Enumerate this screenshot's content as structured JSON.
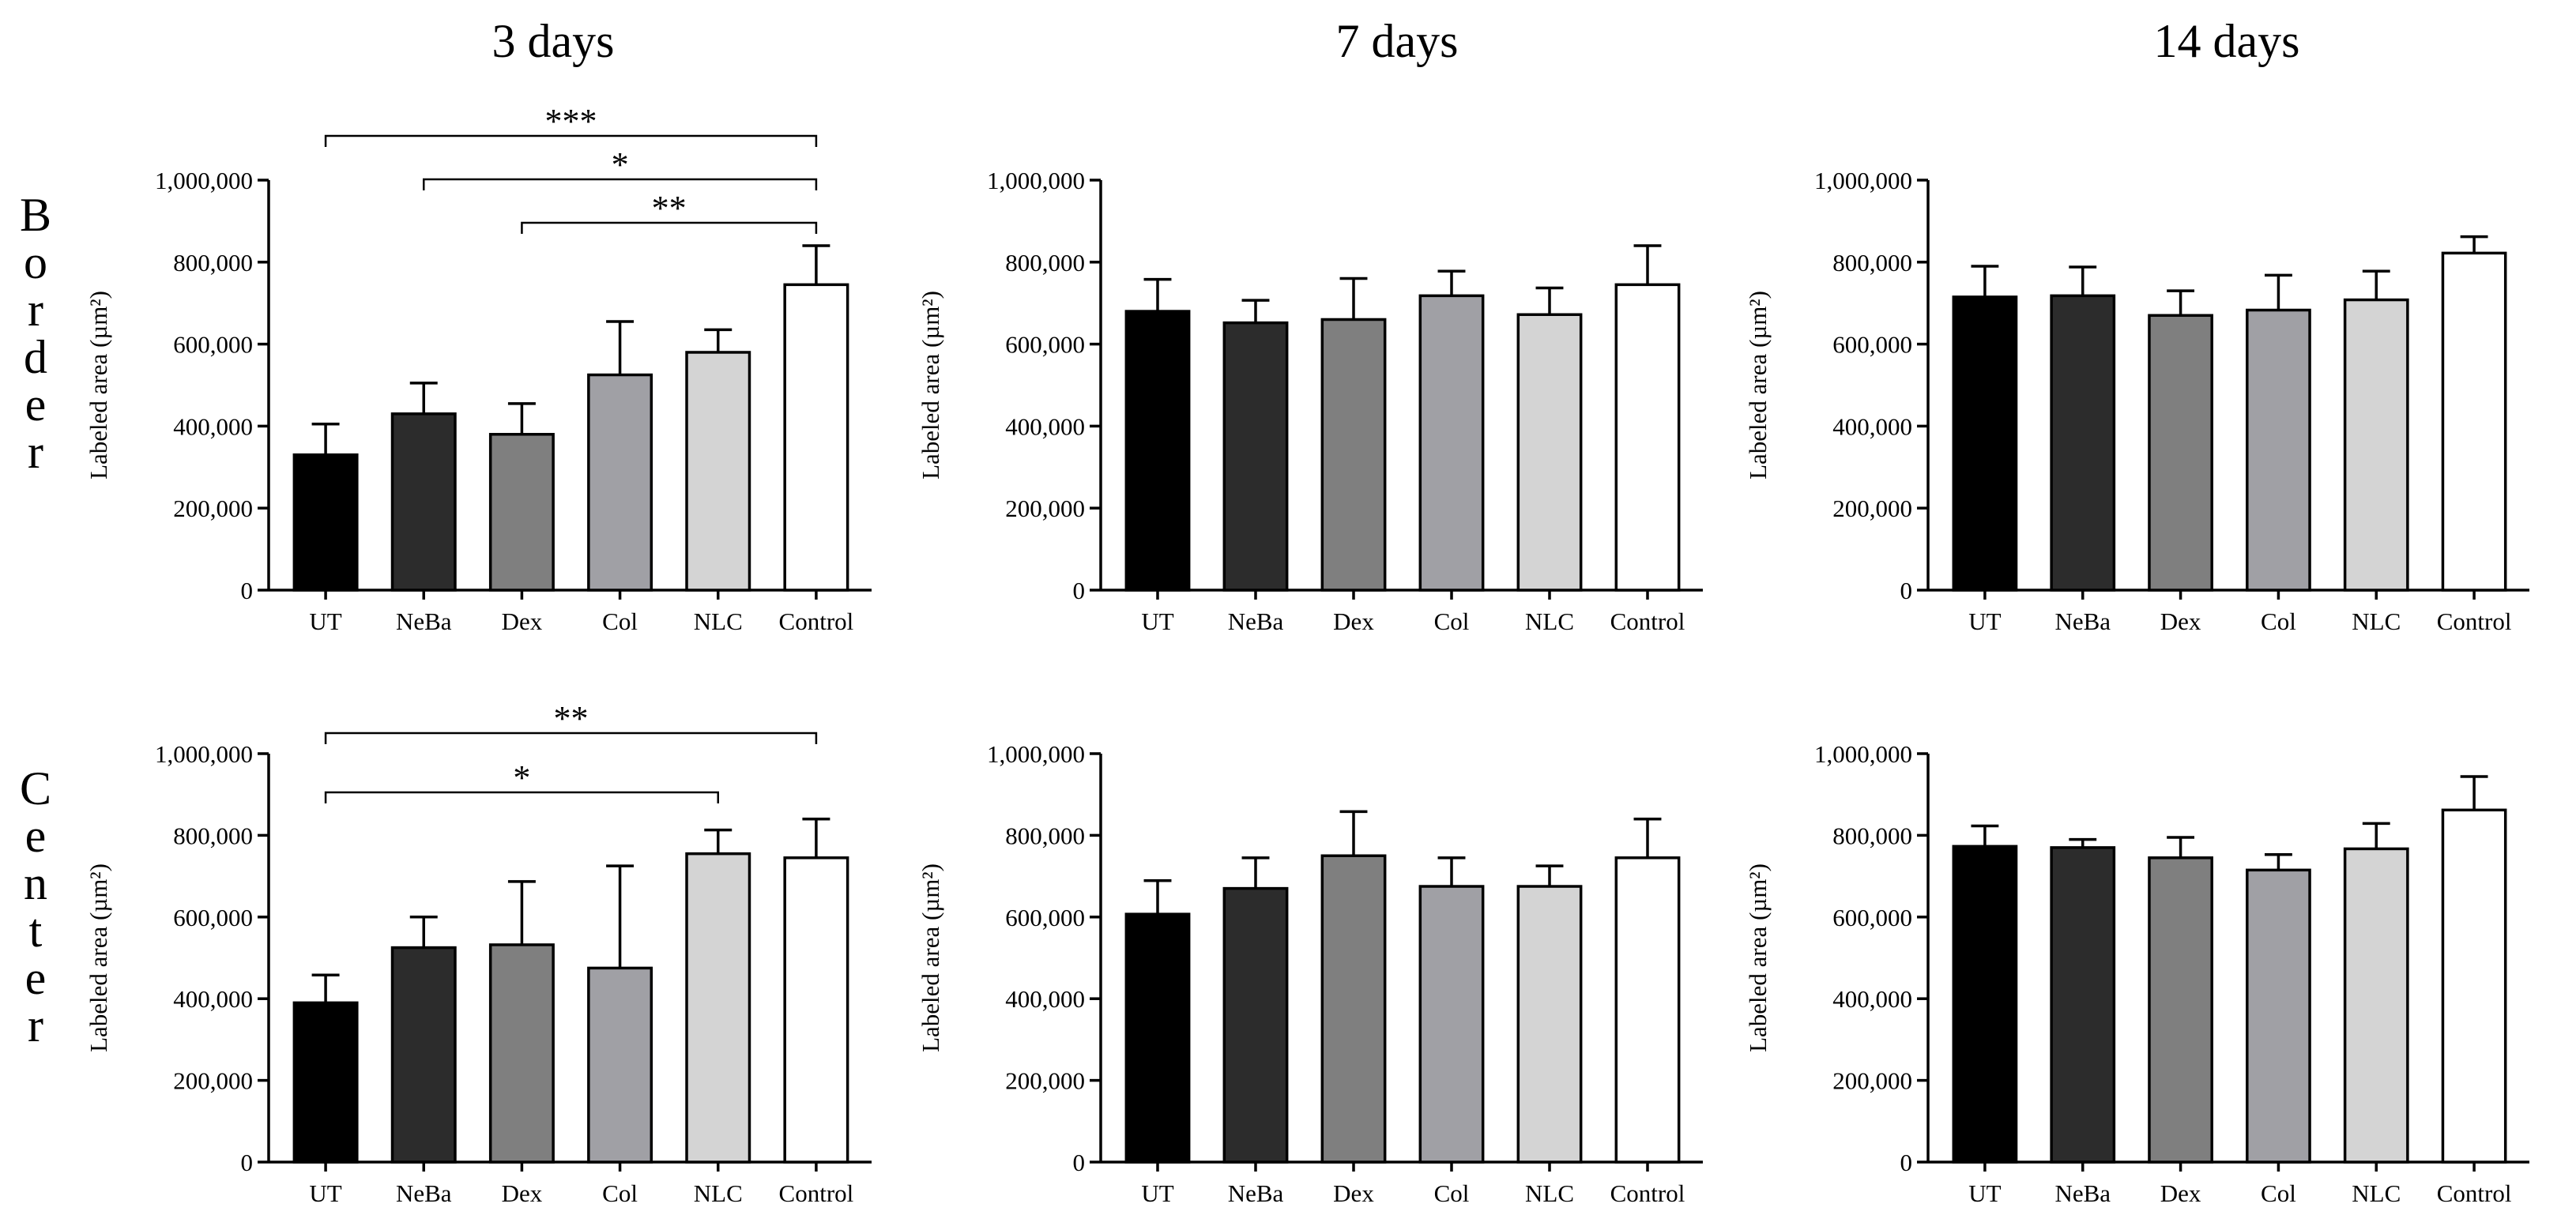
{
  "column_titles": [
    "3 days",
    "7 days",
    "14 days"
  ],
  "row_labels": [
    "Border",
    "Center"
  ],
  "colors": {
    "UT": "#000000",
    "NeBa": "#2c2c2c",
    "Dex": "#7f7f7f",
    "Col": "#a0a0a5",
    "NLC": "#d4d4d4",
    "Control": "#ffffff",
    "axis": "#000000"
  },
  "chart_data": [
    {
      "type": "bar",
      "panel": "Border, 3 days",
      "categories": [
        "UT",
        "NeBa",
        "Dex",
        "Col",
        "NLC",
        "Control"
      ],
      "values": [
        330000,
        430000,
        380000,
        525000,
        580000,
        745000
      ],
      "errors": [
        75000,
        75000,
        75000,
        130000,
        55000,
        95000
      ],
      "ylabel": "Labeled area (µm²)",
      "yticks": [
        "0",
        "200,000",
        "400,000",
        "600,000",
        "800,000",
        "1,000,000"
      ],
      "ylim": [
        0,
        1000000
      ],
      "significance": [
        {
          "from": "UT",
          "to": "Control",
          "label": "***"
        },
        {
          "from": "NeBa",
          "to": "Control",
          "label": "*"
        },
        {
          "from": "Dex",
          "to": "Control",
          "label": "**"
        }
      ]
    },
    {
      "type": "bar",
      "panel": "Border, 7 days",
      "categories": [
        "UT",
        "NeBa",
        "Dex",
        "Col",
        "NLC",
        "Control"
      ],
      "values": [
        680000,
        652000,
        660000,
        718000,
        672000,
        745000
      ],
      "errors": [
        78000,
        55000,
        100000,
        60000,
        65000,
        95000
      ],
      "ylabel": "Labeled area (µm²)",
      "yticks": [
        "0",
        "200,000",
        "400,000",
        "600,000",
        "800,000",
        "1,000,000"
      ],
      "ylim": [
        0,
        1000000
      ],
      "significance": []
    },
    {
      "type": "bar",
      "panel": "Border, 14 days",
      "categories": [
        "UT",
        "NeBa",
        "Dex",
        "Col",
        "NLC",
        "Control"
      ],
      "values": [
        715000,
        718000,
        670000,
        683000,
        708000,
        822000
      ],
      "errors": [
        75000,
        70000,
        60000,
        85000,
        70000,
        40000
      ],
      "ylabel": "Labeled area (µm²)",
      "yticks": [
        "0",
        "200,000",
        "400,000",
        "600,000",
        "800,000",
        "1,000,000"
      ],
      "ylim": [
        0,
        1000000
      ],
      "significance": []
    },
    {
      "type": "bar",
      "panel": "Center, 3 days",
      "categories": [
        "UT",
        "NeBa",
        "Dex",
        "Col",
        "NLC",
        "Control"
      ],
      "values": [
        390000,
        525000,
        532000,
        475000,
        755000,
        745000
      ],
      "errors": [
        68000,
        75000,
        155000,
        250000,
        58000,
        95000
      ],
      "ylabel": "Labeled area (µm²)",
      "yticks": [
        "0",
        "200,000",
        "400,000",
        "600,000",
        "800,000",
        "1,000,000"
      ],
      "ylim": [
        0,
        1000000
      ],
      "significance": [
        {
          "from": "UT",
          "to": "Control",
          "label": "**"
        },
        {
          "from": "UT",
          "to": "NLC",
          "label": "*"
        }
      ]
    },
    {
      "type": "bar",
      "panel": "Center, 7 days",
      "categories": [
        "UT",
        "NeBa",
        "Dex",
        "Col",
        "NLC",
        "Control"
      ],
      "values": [
        607000,
        670000,
        750000,
        675000,
        675000,
        745000
      ],
      "errors": [
        82000,
        75000,
        108000,
        70000,
        50000,
        95000
      ],
      "ylabel": "Labeled area (µm²)",
      "yticks": [
        "0",
        "200,000",
        "400,000",
        "600,000",
        "800,000",
        "1,000,000"
      ],
      "ylim": [
        0,
        1000000
      ],
      "significance": []
    },
    {
      "type": "bar",
      "panel": "Center, 14 days",
      "categories": [
        "UT",
        "NeBa",
        "Dex",
        "Col",
        "NLC",
        "Control"
      ],
      "values": [
        773000,
        770000,
        745000,
        715000,
        767000,
        862000
      ],
      "errors": [
        50000,
        20000,
        50000,
        38000,
        62000,
        82000
      ],
      "ylabel": "Labeled area (µm²)",
      "yticks": [
        "0",
        "200,000",
        "400,000",
        "600,000",
        "800,000",
        "1,000,000"
      ],
      "ylim": [
        0,
        1000000
      ],
      "significance": []
    }
  ]
}
